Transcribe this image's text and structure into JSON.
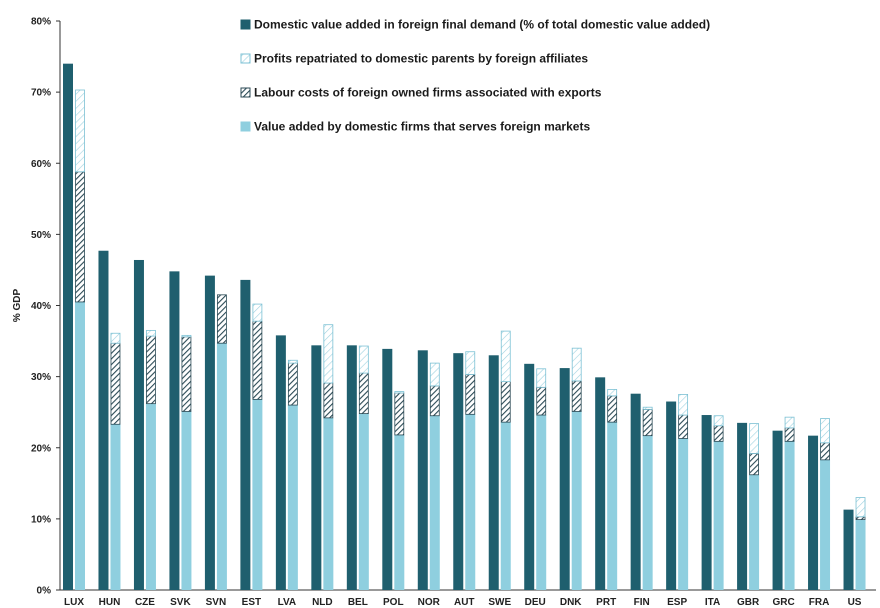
{
  "chart_data": {
    "type": "bar",
    "ylabel": "% GDP",
    "ylim": [
      0,
      80
    ],
    "yticks": [
      0,
      10,
      20,
      30,
      40,
      50,
      60,
      70,
      80
    ],
    "ytick_labels": [
      "0%",
      "10%",
      "20%",
      "30%",
      "40%",
      "50%",
      "60%",
      "70%",
      "80%"
    ],
    "grid": false,
    "legend_position": "top-center",
    "categories": [
      "LUX",
      "HUN",
      "CZE",
      "SVK",
      "SVN",
      "EST",
      "LVA",
      "NLD",
      "BEL",
      "POL",
      "NOR",
      "AUT",
      "SWE",
      "DEU",
      "DNK",
      "PRT",
      "FIN",
      "ESP",
      "ITA",
      "GBR",
      "GRC",
      "FRA",
      "USA"
    ],
    "category_labels": [
      "LUX",
      "HUN",
      "CZE",
      "SVK",
      "SVN",
      "EST",
      "LVA",
      "NLD",
      "BEL",
      "POL",
      "NOR",
      "AUT",
      "SWE",
      "DEU",
      "DNK",
      "PRT",
      "FIN",
      "ESP",
      "ITA",
      "GBR",
      "GRC",
      "FRA",
      "US"
    ],
    "series": [
      {
        "name": "Domestic value added in foreign final demand (% of total domestic value added)",
        "style": "solid-dark",
        "values": [
          74.0,
          47.7,
          46.4,
          44.8,
          44.2,
          43.6,
          35.8,
          34.4,
          34.4,
          33.9,
          33.7,
          33.3,
          33.0,
          31.8,
          31.2,
          29.9,
          27.6,
          26.5,
          24.6,
          23.5,
          22.4,
          21.7,
          11.3
        ]
      },
      {
        "name": "Value added by domestic firms that serves foreign markets",
        "style": "solid-light",
        "values": [
          40.5,
          23.3,
          26.2,
          25.1,
          34.7,
          26.8,
          26.0,
          24.2,
          24.8,
          21.8,
          24.5,
          24.7,
          23.6,
          24.6,
          25.1,
          23.6,
          21.7,
          21.3,
          20.9,
          16.2,
          20.9,
          18.3,
          9.9
        ]
      },
      {
        "name": "Labour costs of foreign owned firms associated with exports",
        "style": "hatched",
        "values": [
          18.3,
          11.4,
          9.5,
          10.5,
          6.8,
          11.0,
          5.9,
          4.9,
          5.7,
          5.9,
          4.2,
          5.6,
          5.7,
          3.9,
          4.3,
          3.7,
          3.7,
          3.3,
          2.2,
          3.0,
          1.9,
          2.4,
          0.4
        ]
      },
      {
        "name": "Profits repatriated to domestic parents by foreign affiliates",
        "style": "outline-hatched",
        "values": [
          11.5,
          1.4,
          0.8,
          0.2,
          0.0,
          2.4,
          0.4,
          8.2,
          3.8,
          0.2,
          3.2,
          3.2,
          7.1,
          2.6,
          4.6,
          0.9,
          0.3,
          2.9,
          1.4,
          4.2,
          1.5,
          3.4,
          2.7
        ]
      }
    ],
    "legend": [
      "Domestic value added in foreign final demand (% of total domestic value added)",
      "Profits repatriated to domestic parents by foreign affiliates",
      "Labour costs of foreign owned firms associated with exports",
      "Value added by domestic firms that serves foreign markets"
    ],
    "colors": {
      "dark": "#1f5f6e",
      "light": "#8fcfdf",
      "hatch_bg": "#ffffff",
      "hatch_line": "#2b4a55",
      "outline_hatch": "#7cc1d4",
      "axis": "#333333"
    }
  }
}
